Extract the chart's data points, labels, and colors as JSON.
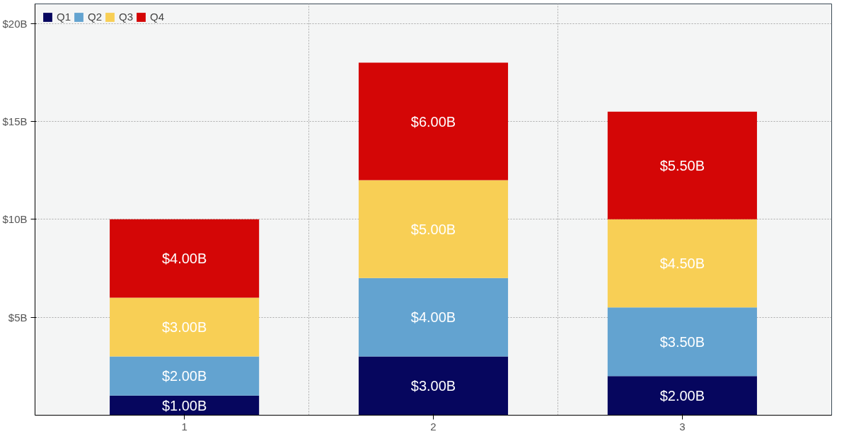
{
  "chart_data": {
    "type": "bar",
    "stacked": true,
    "categories": [
      "1",
      "2",
      "3"
    ],
    "series": [
      {
        "name": "Q1",
        "color": "#06065e",
        "values": [
          1,
          3,
          2
        ],
        "value_labels": [
          "$1.00B",
          "$3.00B",
          "$2.00B"
        ]
      },
      {
        "name": "Q2",
        "color": "#63a3d0",
        "values": [
          2,
          4,
          3.5
        ],
        "value_labels": [
          "$2.00B",
          "$4.00B",
          "$3.50B"
        ]
      },
      {
        "name": "Q3",
        "color": "#f8cf55",
        "values": [
          3,
          5,
          4.5
        ],
        "value_labels": [
          "$3.00B",
          "$5.00B",
          "$4.50B"
        ]
      },
      {
        "name": "Q4",
        "color": "#d40606",
        "values": [
          4,
          6,
          5.5
        ],
        "value_labels": [
          "$4.00B",
          "$6.00B",
          "$5.50B"
        ]
      }
    ],
    "ylim": [
      0,
      21
    ],
    "yticks": [
      {
        "value": 5,
        "label": "$5B"
      },
      {
        "value": 10,
        "label": "$10B"
      },
      {
        "value": 15,
        "label": "$15B"
      },
      {
        "value": 20,
        "label": "$20B"
      }
    ],
    "grid": true,
    "legend": "top left"
  }
}
